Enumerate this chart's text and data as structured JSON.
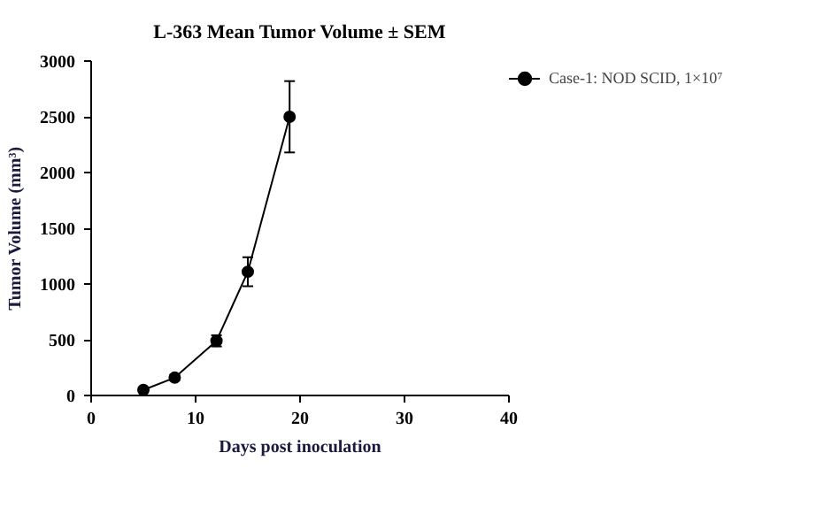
{
  "chart_data": {
    "type": "line",
    "title": "L-363 Mean Tumor Volume ± SEM",
    "xlabel": "Days post inoculation",
    "ylabel": "Tumor Volume (mm³)",
    "x": [
      5,
      8,
      12,
      15,
      19
    ],
    "series": [
      {
        "name": "Case-1: NOD SCID, 1×10⁷",
        "color": "#000000",
        "values": [
          50,
          160,
          490,
          1110,
          2500
        ],
        "errors": [
          20,
          25,
          50,
          130,
          320
        ]
      }
    ],
    "xlim": [
      0,
      40
    ],
    "xticks": [
      0,
      10,
      20,
      30,
      40
    ],
    "ylim": [
      0,
      3000
    ],
    "yticks": [
      0,
      500,
      1000,
      1500,
      2000,
      2500,
      3000
    ],
    "grid": false,
    "legend": "top right",
    "marker": "circle",
    "line_style": "solid"
  }
}
